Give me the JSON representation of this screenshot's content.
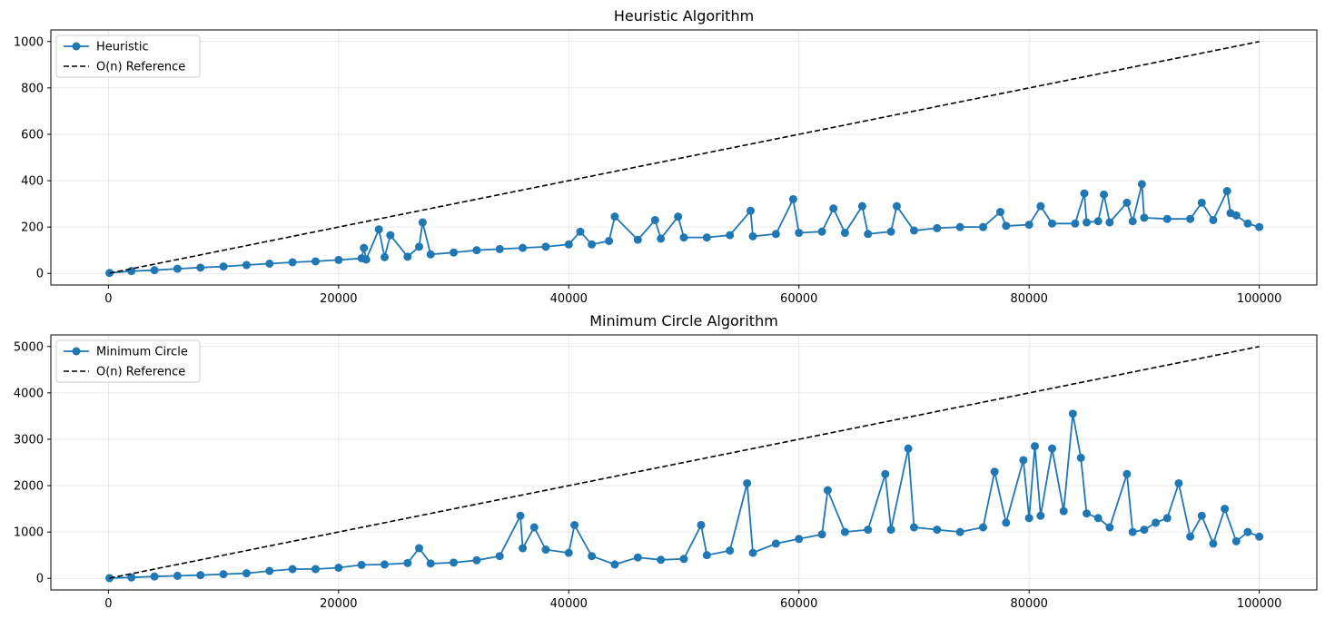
{
  "chart_data": [
    {
      "type": "line",
      "title": "Heuristic Algorithm",
      "xlabel": "",
      "ylabel": "",
      "xlim": [
        -5000,
        105000
      ],
      "ylim": [
        -50,
        1050
      ],
      "xticks": [
        0,
        20000,
        40000,
        60000,
        80000,
        100000
      ],
      "yticks": [
        0,
        200,
        400,
        600,
        800,
        1000
      ],
      "grid": true,
      "legend_position": "top-left",
      "series": [
        {
          "name": "Heuristic",
          "style": "line-with-markers",
          "color": "#1f77b4",
          "x": [
            100,
            2000,
            4000,
            6000,
            8000,
            10000,
            12000,
            14000,
            16000,
            18000,
            20000,
            22000,
            22200,
            22400,
            23500,
            24000,
            24500,
            26000,
            27000,
            27300,
            28000,
            30000,
            32000,
            34000,
            36000,
            38000,
            40000,
            41000,
            42000,
            43500,
            44000,
            46000,
            47500,
            48000,
            49500,
            50000,
            52000,
            54000,
            55800,
            56000,
            58000,
            59500,
            60000,
            62000,
            63000,
            64000,
            65500,
            66000,
            68000,
            68500,
            70000,
            72000,
            74000,
            76000,
            77500,
            78000,
            80000,
            81000,
            82000,
            84000,
            84800,
            85000,
            86000,
            86500,
            87000,
            88500,
            89000,
            89800,
            90000,
            92000,
            94000,
            95000,
            96000,
            97200,
            97500,
            98000,
            99000,
            100000
          ],
          "y": [
            2,
            10,
            14,
            20,
            25,
            30,
            36,
            42,
            48,
            52,
            58,
            65,
            110,
            60,
            190,
            70,
            165,
            72,
            115,
            220,
            82,
            90,
            100,
            105,
            110,
            115,
            125,
            180,
            125,
            140,
            245,
            145,
            230,
            150,
            245,
            155,
            155,
            165,
            270,
            160,
            170,
            320,
            175,
            180,
            280,
            175,
            290,
            170,
            180,
            290,
            185,
            195,
            200,
            200,
            265,
            205,
            210,
            290,
            215,
            215,
            345,
            220,
            225,
            340,
            220,
            305,
            225,
            385,
            240,
            235,
            235,
            305,
            230,
            355,
            260,
            250,
            215,
            200
          ]
        },
        {
          "name": "O(n) Reference",
          "style": "dashed",
          "color": "#000000",
          "x": [
            100,
            100000
          ],
          "y": [
            1,
            1000
          ]
        }
      ]
    },
    {
      "type": "line",
      "title": "Minimum Circle Algorithm",
      "xlabel": "",
      "ylabel": "",
      "xlim": [
        -5000,
        105000
      ],
      "ylim": [
        -250,
        5250
      ],
      "xticks": [
        0,
        20000,
        40000,
        60000,
        80000,
        100000
      ],
      "yticks": [
        0,
        1000,
        2000,
        3000,
        4000,
        5000
      ],
      "grid": true,
      "legend_position": "top-left",
      "series": [
        {
          "name": "Minimum Circle",
          "style": "line-with-markers",
          "color": "#1f77b4",
          "x": [
            100,
            2000,
            4000,
            6000,
            8000,
            10000,
            12000,
            14000,
            16000,
            18000,
            20000,
            22000,
            24000,
            26000,
            27000,
            28000,
            30000,
            32000,
            34000,
            35800,
            36000,
            37000,
            38000,
            40000,
            40500,
            42000,
            44000,
            46000,
            48000,
            50000,
            51500,
            52000,
            54000,
            55500,
            56000,
            58000,
            60000,
            62000,
            62500,
            64000,
            66000,
            67500,
            68000,
            69500,
            70000,
            72000,
            74000,
            76000,
            77000,
            78000,
            79500,
            80000,
            80500,
            81000,
            82000,
            83000,
            83800,
            84500,
            85000,
            86000,
            87000,
            88500,
            89000,
            90000,
            91000,
            92000,
            93000,
            94000,
            95000,
            96000,
            97000,
            98000,
            99000,
            100000
          ],
          "y": [
            5,
            20,
            40,
            55,
            70,
            90,
            110,
            160,
            200,
            200,
            230,
            290,
            300,
            330,
            650,
            320,
            340,
            390,
            480,
            1350,
            650,
            1100,
            620,
            550,
            1150,
            480,
            300,
            450,
            400,
            420,
            1150,
            500,
            600,
            2050,
            550,
            750,
            850,
            950,
            1900,
            1000,
            1050,
            2250,
            1050,
            2800,
            1100,
            1050,
            1000,
            1100,
            2300,
            1200,
            2550,
            1300,
            2850,
            1350,
            2800,
            1450,
            3550,
            2600,
            1400,
            1300,
            1100,
            2250,
            1000,
            1050,
            1200,
            1300,
            2050,
            900,
            1350,
            750,
            1500,
            800,
            1000,
            900
          ]
        },
        {
          "name": "O(n) Reference",
          "style": "dashed",
          "color": "#000000",
          "x": [
            100,
            100000
          ],
          "y": [
            5,
            5000
          ]
        }
      ]
    }
  ]
}
